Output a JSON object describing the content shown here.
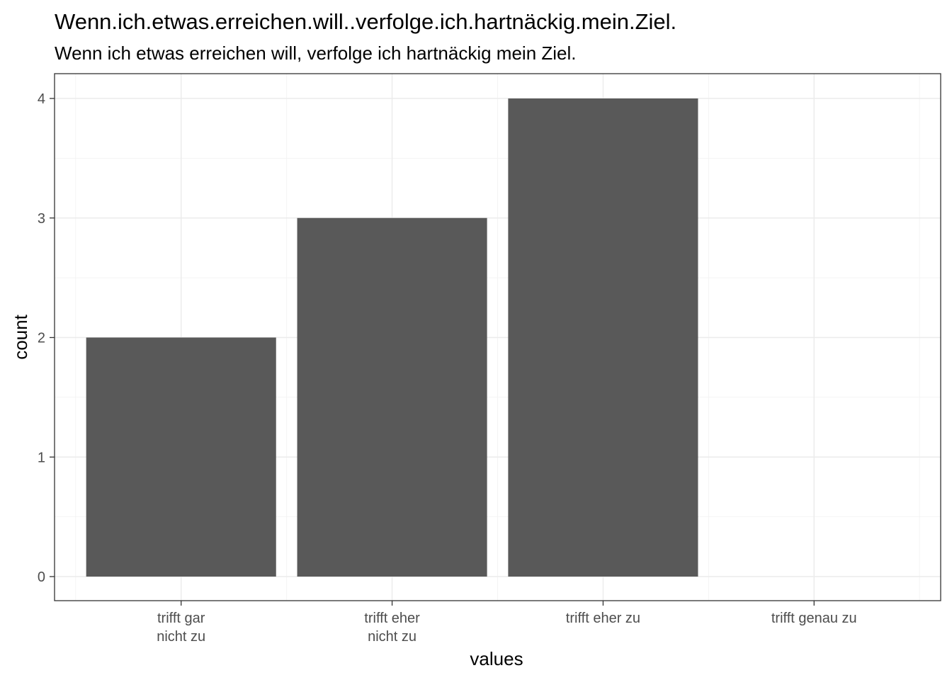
{
  "chart_data": {
    "type": "bar",
    "title": "Wenn.ich.etwas.erreichen.will..verfolge.ich.hartnäckig.mein.Ziel.",
    "subtitle": "Wenn ich etwas erreichen will, verfolge ich hartnäckig mein Ziel.",
    "xlabel": "values",
    "ylabel": "count",
    "categories": [
      [
        "trifft gar",
        "nicht zu"
      ],
      [
        "trifft eher",
        "nicht zu"
      ],
      [
        "trifft eher zu"
      ],
      [
        "trifft genau zu"
      ]
    ],
    "values": [
      2,
      3,
      4,
      0
    ],
    "ylim": [
      0,
      4
    ],
    "yticks": [
      0,
      1,
      2,
      3,
      4
    ],
    "ytick_labels": [
      "0",
      "1",
      "2",
      "3",
      "4"
    ],
    "grid": true,
    "bar_color": "#595959"
  }
}
